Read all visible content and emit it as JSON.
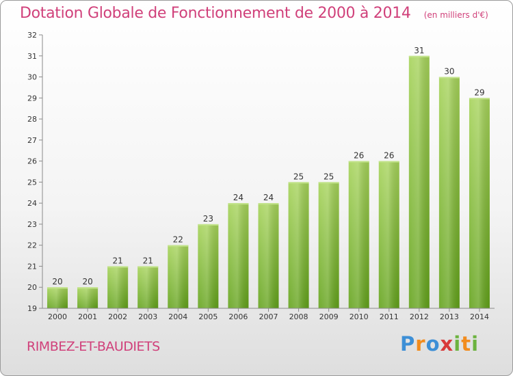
{
  "title": "Dotation Globale de Fonctionnement de 2000 à 2014",
  "units": "(en milliers d'€)",
  "commune": "RIMBEZ-ET-BAUDIETS",
  "brand": {
    "letters": [
      "P",
      "r",
      "o",
      "x",
      "i",
      "t",
      "i"
    ],
    "colors": [
      "#3d8fd6",
      "#f28c1e",
      "#3d8fd6",
      "#d83a3a",
      "#6cb33f",
      "#f28c1e",
      "#6cb33f"
    ]
  },
  "chart_data": {
    "type": "bar",
    "title": "Dotation Globale de Fonctionnement de 2000 à 2014",
    "units": "(en milliers d'€)",
    "categories": [
      "2000",
      "2001",
      "2002",
      "2003",
      "2004",
      "2005",
      "2006",
      "2007",
      "2008",
      "2009",
      "2010",
      "2011",
      "2012",
      "2013",
      "2014"
    ],
    "values": [
      20,
      20,
      21,
      21,
      22,
      23,
      24,
      24,
      25,
      25,
      26,
      26,
      31,
      30,
      29
    ],
    "ylim": [
      19,
      32
    ],
    "yticks": [
      19,
      20,
      21,
      22,
      23,
      24,
      25,
      26,
      27,
      28,
      29,
      30,
      31,
      32
    ],
    "grid": false,
    "bar_color": "#8cc63f",
    "value_labels": true
  }
}
